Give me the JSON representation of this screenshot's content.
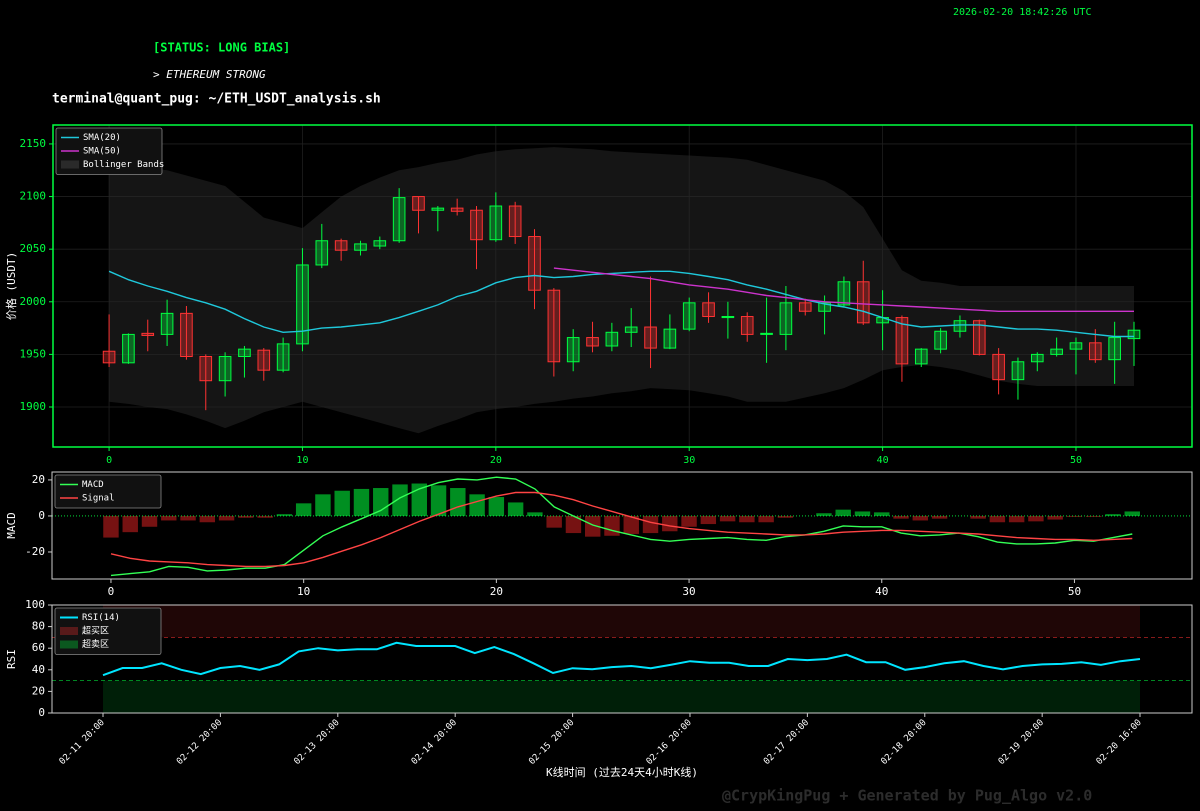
{
  "header": {
    "timestamp": "2026-02-20 18:42:26 UTC",
    "status": "[STATUS: LONG BIAS]",
    "subtitle": "> ETHEREUM STRONG",
    "prompt": "terminal@quant_pug: ~/ETH_USDT_analysis.sh"
  },
  "watermark": "@CrypKingPug + Generated by Pug_Algo v2.0",
  "chart_data": [
    {
      "type": "candlestick",
      "ylabel": "价格 (USDT)",
      "x": [
        0,
        1,
        2,
        3,
        4,
        5,
        6,
        7,
        8,
        9,
        10,
        11,
        12,
        13,
        14,
        15,
        16,
        17,
        18,
        19,
        20,
        21,
        22,
        23,
        24,
        25,
        26,
        27,
        28,
        29,
        30,
        31,
        32,
        33,
        34,
        35,
        36,
        37,
        38,
        39,
        40,
        41,
        42,
        43,
        44,
        45,
        46,
        47,
        48,
        49,
        50,
        51,
        52,
        53
      ],
      "open": [
        1953,
        1942,
        1970,
        1969,
        1989,
        1948,
        1925,
        1948,
        1954,
        1935,
        1960,
        2035,
        2058,
        2049,
        2053,
        2058,
        2100,
        2087,
        2089,
        2087,
        2059,
        2091,
        2062,
        2011,
        1943,
        1966,
        1958,
        1971,
        1976,
        1956,
        1974,
        1999,
        1985,
        1986,
        1969,
        1969,
        1999,
        1991,
        1997,
        2019,
        1980,
        1985,
        1941,
        1955,
        1972,
        1982,
        1950,
        1926,
        1943,
        1950,
        1955,
        1961,
        1945,
        1965
      ],
      "high": [
        1988,
        1970,
        1983,
        2002,
        1996,
        1950,
        1952,
        1958,
        1956,
        1966,
        2051,
        2074,
        2060,
        2058,
        2062,
        2108,
        2100,
        2091,
        2098,
        2091,
        2104,
        2095,
        2069,
        2013,
        1974,
        1981,
        1980,
        1994,
        2024,
        1988,
        2004,
        2009,
        2000,
        1990,
        2004,
        2015,
        2003,
        2006,
        2024,
        2039,
        2011,
        1987,
        1956,
        1975,
        1987,
        1983,
        1956,
        1947,
        1952,
        1966,
        1966,
        1974,
        1981,
        1981
      ],
      "low": [
        1938,
        1941,
        1953,
        1958,
        1945,
        1897,
        1910,
        1928,
        1925,
        1933,
        1953,
        2032,
        2039,
        2044,
        2050,
        2056,
        2065,
        2067,
        2082,
        2031,
        2057,
        2055,
        1993,
        1929,
        1934,
        1952,
        1953,
        1957,
        1937,
        1955,
        1972,
        1980,
        1965,
        1962,
        1942,
        1954,
        1987,
        1969,
        1995,
        1978,
        1954,
        1924,
        1938,
        1951,
        1966,
        1949,
        1912,
        1907,
        1934,
        1948,
        1931,
        1942,
        1922,
        1939
      ],
      "close": [
        1942,
        1969,
        1968,
        1989,
        1948,
        1925,
        1948,
        1955,
        1935,
        1960,
        2035,
        2058,
        2049,
        2055,
        2058,
        2099,
        2087,
        2089,
        2086,
        2059,
        2091,
        2062,
        2011,
        1943,
        1966,
        1958,
        1971,
        1976,
        1956,
        1974,
        1999,
        1986,
        1986,
        1969,
        1970,
        1999,
        1991,
        1999,
        2019,
        1980,
        1985,
        1941,
        1955,
        1972,
        1982,
        1950,
        1926,
        1943,
        1950,
        1955,
        1961,
        1945,
        1966,
        1973
      ],
      "up_color": "#00ff41",
      "down_color": "#ff3333",
      "series": [
        {
          "name": "SMA(20)",
          "color": "#1fc8db",
          "values": [
            2029,
            2021,
            2015,
            2010,
            2004,
            1999,
            1993,
            1984,
            1976,
            1971,
            1972,
            1975,
            1976,
            1978,
            1980,
            1985,
            1991,
            1997,
            2005,
            2010,
            2018,
            2023,
            2025,
            2023,
            2024,
            2026,
            2027,
            2028,
            2029,
            2029,
            2027,
            2024,
            2021,
            2016,
            2012,
            2007,
            2002,
            1998,
            1995,
            1991,
            1985,
            1979,
            1976,
            1977,
            1978,
            1978,
            1976,
            1974,
            1974,
            1973,
            1971,
            1969,
            1967,
            1967
          ]
        },
        {
          "name": "SMA(50)",
          "color": "#cc33cc",
          "values": [
            null,
            null,
            null,
            null,
            null,
            null,
            null,
            null,
            null,
            null,
            null,
            null,
            null,
            null,
            null,
            null,
            null,
            null,
            null,
            null,
            null,
            null,
            null,
            2032,
            2030,
            2028,
            2026,
            2024,
            2022,
            2019,
            2016,
            2014,
            2012,
            2009,
            2006,
            2004,
            2002,
            2000,
            1999,
            1998,
            1997,
            1996,
            1995,
            1994,
            1993,
            1992,
            1991,
            1991,
            1991,
            1991,
            1991,
            1991,
            1991,
            1991
          ]
        }
      ],
      "bands": {
        "name": "Bollinger Bands",
        "color": "#2a2a2a",
        "upper": [
          2130,
          2128,
          2127,
          2125,
          2120,
          2115,
          2110,
          2095,
          2080,
          2075,
          2070,
          2085,
          2100,
          2110,
          2118,
          2125,
          2128,
          2132,
          2135,
          2140,
          2143,
          2145,
          2146,
          2147,
          2146,
          2145,
          2143,
          2142,
          2141,
          2140,
          2139,
          2138,
          2137,
          2135,
          2130,
          2125,
          2120,
          2115,
          2105,
          2090,
          2060,
          2030,
          2020,
          2018,
          2015,
          2015,
          2015,
          2015,
          2015,
          2015,
          2015,
          2015,
          2015,
          2015
        ],
        "lower": [
          1905,
          1903,
          1900,
          1898,
          1893,
          1887,
          1880,
          1887,
          1895,
          1900,
          1905,
          1900,
          1895,
          1890,
          1885,
          1880,
          1875,
          1882,
          1888,
          1895,
          1898,
          1900,
          1903,
          1905,
          1908,
          1910,
          1913,
          1915,
          1918,
          1917,
          1916,
          1913,
          1910,
          1905,
          1905,
          1905,
          1909,
          1913,
          1918,
          1926,
          1935,
          1938,
          1940,
          1938,
          1935,
          1930,
          1925,
          1922,
          1920,
          1920,
          1920,
          1920,
          1920,
          1920
        ]
      },
      "xlim": [
        -2.9,
        56
      ],
      "ylim": [
        1862,
        2168
      ],
      "xticks": [
        0,
        10,
        20,
        30,
        40,
        50
      ],
      "yticks": [
        1900,
        1950,
        2000,
        2050,
        2100,
        2150
      ],
      "grid": true,
      "legend": "upper left"
    },
    {
      "type": "macd",
      "ylabel": "MACD",
      "x": [
        0,
        1,
        2,
        3,
        4,
        5,
        6,
        7,
        8,
        9,
        10,
        11,
        12,
        13,
        14,
        15,
        16,
        17,
        18,
        19,
        20,
        21,
        22,
        23,
        24,
        25,
        26,
        27,
        28,
        29,
        30,
        31,
        32,
        33,
        34,
        35,
        36,
        37,
        38,
        39,
        40,
        41,
        42,
        43,
        44,
        45,
        46,
        47,
        48,
        49,
        50,
        51,
        52,
        53
      ],
      "series": [
        {
          "name": "MACD",
          "color": "#33ff55",
          "values": [
            -33,
            -32,
            -31,
            -28,
            -28.5,
            -30.5,
            -30,
            -29,
            -29,
            -27,
            -19,
            -11,
            -6,
            -1.5,
            3,
            10,
            15,
            18.5,
            20.5,
            20,
            21.5,
            20.5,
            15,
            5,
            0,
            -5,
            -8,
            -10.5,
            -13,
            -14,
            -13,
            -12.5,
            -12,
            -13,
            -13.5,
            -11.5,
            -10.5,
            -8.5,
            -5.5,
            -6,
            -6,
            -9.5,
            -11,
            -10.5,
            -9.5,
            -11.5,
            -14.5,
            -15.5,
            -15.5,
            -15,
            -13.5,
            -14,
            -12,
            -10
          ]
        },
        {
          "name": "Signal",
          "color": "#ff4444",
          "values": [
            -21,
            -23.5,
            -25,
            -25.5,
            -26,
            -27,
            -27.5,
            -28,
            -28,
            -27.5,
            -26,
            -23,
            -19.5,
            -16,
            -12,
            -7.5,
            -3,
            1,
            5,
            8,
            11,
            13,
            13,
            11.5,
            9,
            5.5,
            2.5,
            -0.5,
            -3.5,
            -5.5,
            -7,
            -8,
            -9,
            -9.5,
            -10,
            -10.5,
            -10.5,
            -10,
            -9,
            -8.5,
            -8,
            -8,
            -8.5,
            -9,
            -9.5,
            -10,
            -11,
            -12,
            -12.5,
            -13,
            -13,
            -13.5,
            -13,
            -12.5
          ]
        }
      ],
      "histogram": {
        "pos_color": "#00a827",
        "neg_color": "#8b1515",
        "values": [
          -12,
          -9,
          -6,
          -2.5,
          -2.5,
          -3.5,
          -2.5,
          -1,
          -1,
          1,
          7,
          12,
          14,
          15,
          15.5,
          17.5,
          18,
          17,
          15.5,
          12,
          10.5,
          7.5,
          2,
          -6.5,
          -9.5,
          -11.5,
          -11,
          -10,
          -9.5,
          -8.5,
          -6,
          -4.5,
          -3,
          -3.5,
          -3.5,
          -1,
          0,
          1.5,
          3.5,
          2.5,
          2,
          -1.5,
          -2.5,
          -1.5,
          0,
          -1.5,
          -3.5,
          -3.5,
          -3,
          -2,
          -0.5,
          -0.5,
          1,
          2.5
        ]
      },
      "zero_line": 0,
      "xlim": [
        -3.06,
        56.1
      ],
      "ylim": [
        -35,
        24.4
      ],
      "xticks": [
        0,
        10,
        20,
        30,
        40,
        50
      ],
      "yticks": [
        -20,
        0,
        20
      ],
      "legend": "upper left"
    },
    {
      "type": "line",
      "ylabel": "RSI",
      "xlabel": "K线时间 (过去24天4小时K线)",
      "x": [
        "02-11 20:00",
        "02-12 00:00",
        "02-12 04:00",
        "02-12 08:00",
        "02-12 12:00",
        "02-12 16:00",
        "02-12 20:00",
        "02-13 00:00",
        "02-13 04:00",
        "02-13 08:00",
        "02-13 12:00",
        "02-13 16:00",
        "02-13 20:00",
        "02-14 00:00",
        "02-14 04:00",
        "02-14 08:00",
        "02-14 12:00",
        "02-14 16:00",
        "02-14 20:00",
        "02-15 00:00",
        "02-15 04:00",
        "02-15 08:00",
        "02-15 12:00",
        "02-15 16:00",
        "02-15 20:00",
        "02-16 00:00",
        "02-16 04:00",
        "02-16 08:00",
        "02-16 12:00",
        "02-16 16:00",
        "02-16 20:00",
        "02-17 00:00",
        "02-17 04:00",
        "02-17 08:00",
        "02-17 12:00",
        "02-17 16:00",
        "02-17 20:00",
        "02-18 00:00",
        "02-18 04:00",
        "02-18 08:00",
        "02-18 12:00",
        "02-18 16:00",
        "02-18 20:00",
        "02-19 00:00",
        "02-19 04:00",
        "02-19 08:00",
        "02-19 12:00",
        "02-19 16:00",
        "02-19 20:00",
        "02-20 00:00",
        "02-20 04:00",
        "02-20 08:00",
        "02-20 12:00",
        "02-20 16:00"
      ],
      "xticks": [
        "02-11 20:00",
        "02-12 20:00",
        "02-13 20:00",
        "02-14 20:00",
        "02-15 20:00",
        "02-16 20:00",
        "02-17 20:00",
        "02-18 20:00",
        "02-19 20:00",
        "02-20 16:00"
      ],
      "series": [
        {
          "name": "RSI(14)",
          "color": "#00e5ff",
          "values": [
            35,
            41.7,
            41.7,
            46,
            40,
            36,
            41.7,
            43.5,
            40,
            45,
            57,
            60,
            58,
            59,
            59,
            65,
            62,
            62,
            62,
            55.5,
            61,
            54.5,
            46,
            37,
            41.5,
            40.5,
            42.5,
            43.5,
            41.5,
            44.5,
            48,
            46.5,
            46.5,
            43.5,
            43.5,
            50,
            49,
            50,
            54,
            47,
            47,
            40,
            42.5,
            46,
            48,
            43.5,
            40.5,
            43.5,
            45,
            45.5,
            47,
            44.5,
            48,
            50
          ]
        }
      ],
      "overbought": {
        "name": "超买区",
        "value": 70,
        "color": "#ff3333"
      },
      "oversold": {
        "name": "超卖区",
        "value": 30,
        "color": "#00ff41"
      },
      "ylim": [
        0,
        100
      ],
      "yticks": [
        0,
        20,
        40,
        60,
        80,
        100
      ],
      "legend": "upper left"
    }
  ]
}
